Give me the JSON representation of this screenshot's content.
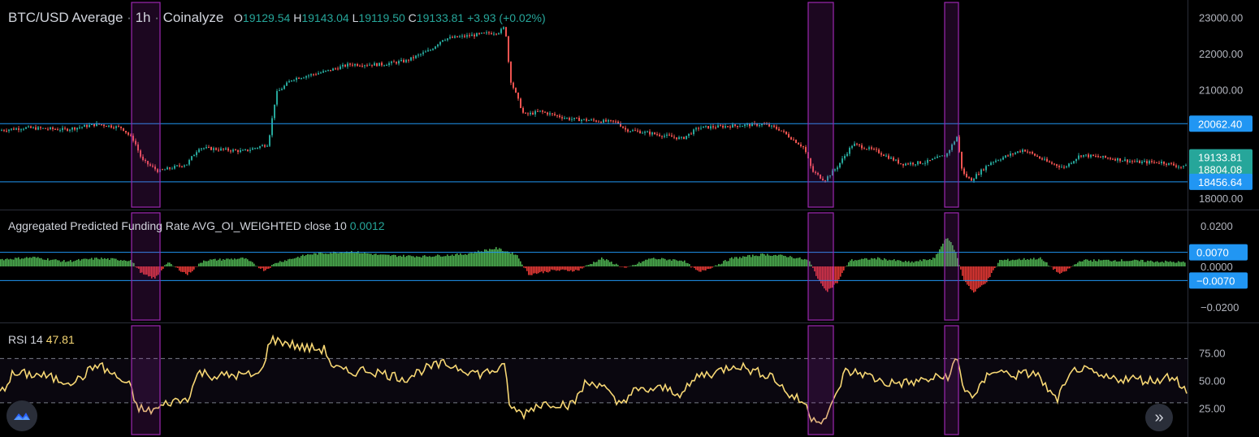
{
  "header": {
    "symbol": "BTC/USD Average",
    "interval": "1h",
    "source": "Coinalyze",
    "sep": "·",
    "o_label": "O",
    "o_value": "19129.54",
    "h_label": "H",
    "h_value": "19143.04",
    "l_label": "L",
    "l_value": "19119.50",
    "c_label": "C",
    "c_value": "19133.81",
    "change": "+3.93 (+0.02%)"
  },
  "funding_legend": {
    "label": "Aggregated Predicted Funding Rate AVG_OI_WEIGHTED close 10",
    "value": "0.0012"
  },
  "rsi_legend": {
    "label": "RSI 14",
    "value": "47.81"
  },
  "colors": {
    "up": "#26a69a",
    "down": "#ef5350",
    "hline": "#2962ff",
    "tag_blue": "#2196f3",
    "tag_green": "#26a69a",
    "highlight": "#9c27b0",
    "rsi": "#f7d774",
    "hist_up": "#4caf50",
    "hist_down": "#e53935"
  },
  "icons": {
    "logo": "tradingview-logo-icon",
    "scroll": "double-chevron-right-icon"
  },
  "chart_data": [
    {
      "type": "candlestick",
      "title": "BTC/USD Average · 1h · Coinalyze",
      "y_ticks": [
        "23000.00",
        "22000.00",
        "21000.00",
        "18000.00"
      ],
      "ylim": [
        17870,
        23300
      ],
      "horizontal_lines": [
        20062.4,
        18456.64
      ],
      "price_tags": [
        {
          "text": "20062.40",
          "value": 20062.4,
          "style": "blue"
        },
        {
          "text": "19133.81",
          "value": 19133.81,
          "style": "green"
        },
        {
          "text": "18804.08",
          "value": 18804.08,
          "style": "green"
        },
        {
          "text": "18456.64",
          "value": 18456.64,
          "style": "blue"
        }
      ],
      "close_path": [
        [
          0,
          19880
        ],
        [
          30,
          19950
        ],
        [
          80,
          19900
        ],
        [
          120,
          20050
        ],
        [
          150,
          19950
        ],
        [
          165,
          19600
        ],
        [
          175,
          19050
        ],
        [
          195,
          18750
        ],
        [
          230,
          18950
        ],
        [
          245,
          19400
        ],
        [
          300,
          19300
        ],
        [
          330,
          19500
        ],
        [
          340,
          20900
        ],
        [
          360,
          21300
        ],
        [
          400,
          21500
        ],
        [
          430,
          21700
        ],
        [
          470,
          21700
        ],
        [
          500,
          21800
        ],
        [
          530,
          22100
        ],
        [
          545,
          22400
        ],
        [
          580,
          22500
        ],
        [
          615,
          22600
        ],
        [
          622,
          22750
        ],
        [
          628,
          21300
        ],
        [
          645,
          20300
        ],
        [
          665,
          20400
        ],
        [
          700,
          20200
        ],
        [
          730,
          20150
        ],
        [
          760,
          20100
        ],
        [
          770,
          19900
        ],
        [
          800,
          19800
        ],
        [
          840,
          19650
        ],
        [
          860,
          19950
        ],
        [
          900,
          20000
        ],
        [
          940,
          20050
        ],
        [
          960,
          19900
        ],
        [
          990,
          19400
        ],
        [
          1000,
          18750
        ],
        [
          1015,
          18500
        ],
        [
          1030,
          18850
        ],
        [
          1050,
          19500
        ],
        [
          1080,
          19300
        ],
        [
          1110,
          18950
        ],
        [
          1140,
          19000
        ],
        [
          1165,
          19200
        ],
        [
          1178,
          19700
        ],
        [
          1185,
          18700
        ],
        [
          1195,
          18500
        ],
        [
          1220,
          19000
        ],
        [
          1260,
          19350
        ],
        [
          1290,
          19000
        ],
        [
          1310,
          18850
        ],
        [
          1330,
          19200
        ],
        [
          1370,
          19100
        ],
        [
          1400,
          19000
        ],
        [
          1430,
          19000
        ],
        [
          1458,
          18850
        ],
        [
          1462,
          19050
        ]
      ]
    },
    {
      "type": "histogram",
      "title": "Aggregated Predicted Funding Rate AVG_OI_WEIGHTED close 10",
      "y_ticks": [
        "0.0200",
        "0.0000",
        "−0.0200"
      ],
      "ylim": [
        -0.0245,
        0.0245
      ],
      "horizontal_lines": [
        0.007,
        -0.007
      ],
      "level_tags": [
        {
          "text": "0.0070",
          "value": 0.007
        },
        {
          "text": "−0.0070",
          "value": -0.007
        }
      ],
      "path": [
        [
          0,
          0.0035
        ],
        [
          40,
          0.0045
        ],
        [
          80,
          0.0025
        ],
        [
          120,
          0.004
        ],
        [
          160,
          0.003
        ],
        [
          175,
          -0.004
        ],
        [
          190,
          -0.006
        ],
        [
          205,
          0.002
        ],
        [
          230,
          -0.004
        ],
        [
          250,
          0.003
        ],
        [
          300,
          0.004
        ],
        [
          325,
          -0.002
        ],
        [
          340,
          0.002
        ],
        [
          380,
          0.006
        ],
        [
          430,
          0.0075
        ],
        [
          470,
          0.0055
        ],
        [
          520,
          0.005
        ],
        [
          570,
          0.006
        ],
        [
          610,
          0.009
        ],
        [
          635,
          0.006
        ],
        [
          650,
          -0.004
        ],
        [
          680,
          -0.002
        ],
        [
          710,
          -0.002
        ],
        [
          740,
          0.004
        ],
        [
          770,
          -0.001
        ],
        [
          800,
          0.004
        ],
        [
          840,
          0.003
        ],
        [
          860,
          -0.003
        ],
        [
          900,
          0.004
        ],
        [
          940,
          0.006
        ],
        [
          970,
          0.005
        ],
        [
          995,
          0.003
        ],
        [
          1010,
          -0.009
        ],
        [
          1018,
          -0.012
        ],
        [
          1030,
          -0.008
        ],
        [
          1045,
          0.003
        ],
        [
          1080,
          0.004
        ],
        [
          1120,
          0.002
        ],
        [
          1150,
          0.004
        ],
        [
          1165,
          0.015
        ],
        [
          1175,
          0.008
        ],
        [
          1185,
          -0.006
        ],
        [
          1198,
          -0.013
        ],
        [
          1215,
          -0.007
        ],
        [
          1230,
          0.003
        ],
        [
          1280,
          0.004
        ],
        [
          1305,
          -0.004
        ],
        [
          1330,
          0.003
        ],
        [
          1380,
          0.003
        ],
        [
          1420,
          0.0025
        ],
        [
          1460,
          0.002
        ]
      ]
    },
    {
      "type": "line",
      "title": "RSI 14",
      "y_ticks": [
        "75.00",
        "50.00",
        "25.00"
      ],
      "ylim": [
        5,
        96
      ],
      "bands": [
        70,
        30
      ],
      "path": [
        [
          0,
          38
        ],
        [
          15,
          55
        ],
        [
          30,
          56
        ],
        [
          50,
          55
        ],
        [
          75,
          50
        ],
        [
          95,
          50
        ],
        [
          120,
          65
        ],
        [
          140,
          55
        ],
        [
          160,
          45
        ],
        [
          168,
          27
        ],
        [
          180,
          22
        ],
        [
          195,
          25
        ],
        [
          210,
          31
        ],
        [
          230,
          33
        ],
        [
          245,
          58
        ],
        [
          265,
          54
        ],
        [
          290,
          55
        ],
        [
          320,
          55
        ],
        [
          333,
          87
        ],
        [
          350,
          85
        ],
        [
          370,
          80
        ],
        [
          400,
          78
        ],
        [
          410,
          62
        ],
        [
          430,
          57
        ],
        [
          450,
          60
        ],
        [
          480,
          55
        ],
        [
          500,
          52
        ],
        [
          520,
          60
        ],
        [
          545,
          65
        ],
        [
          560,
          63
        ],
        [
          590,
          56
        ],
        [
          622,
          62
        ],
        [
          628,
          25
        ],
        [
          645,
          20
        ],
        [
          660,
          28
        ],
        [
          680,
          30
        ],
        [
          705,
          28
        ],
        [
          720,
          47
        ],
        [
          740,
          48
        ],
        [
          760,
          28
        ],
        [
          780,
          40
        ],
        [
          800,
          42
        ],
        [
          820,
          43
        ],
        [
          840,
          38
        ],
        [
          860,
          55
        ],
        [
          880,
          57
        ],
        [
          905,
          65
        ],
        [
          930,
          58
        ],
        [
          950,
          55
        ],
        [
          970,
          38
        ],
        [
          990,
          30
        ],
        [
          1000,
          16
        ],
        [
          1015,
          15
        ],
        [
          1025,
          28
        ],
        [
          1040,
          58
        ],
        [
          1060,
          57
        ],
        [
          1090,
          48
        ],
        [
          1120,
          48
        ],
        [
          1150,
          52
        ],
        [
          1170,
          55
        ],
        [
          1178,
          73
        ],
        [
          1185,
          45
        ],
        [
          1200,
          35
        ],
        [
          1220,
          60
        ],
        [
          1250,
          55
        ],
        [
          1275,
          57
        ],
        [
          1300,
          32
        ],
        [
          1325,
          62
        ],
        [
          1360,
          52
        ],
        [
          1390,
          52
        ],
        [
          1420,
          50
        ],
        [
          1445,
          55
        ],
        [
          1462,
          38
        ]
      ]
    }
  ],
  "highlights": [
    {
      "x_from": 162,
      "x_to": 197,
      "rows": "all"
    },
    {
      "x_from": 995,
      "x_to": 1026,
      "rows": "all"
    },
    {
      "x_from": 1163,
      "x_to": 1180,
      "rows": "all"
    }
  ]
}
